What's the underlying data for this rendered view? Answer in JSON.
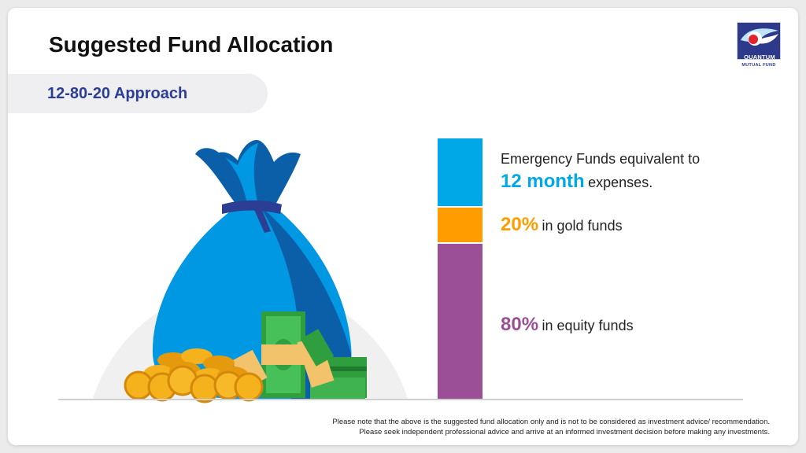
{
  "slide": {
    "title": "Suggested Fund Allocation",
    "subtitle": "12-80-20 Approach"
  },
  "logo": {
    "brand": "QUANTUM",
    "tagline": "MUTUAL FUND",
    "colors": {
      "navy": "#2d3a8c",
      "red": "#e3232c",
      "sky": "#bfe3f7"
    }
  },
  "allocation": [
    {
      "id": "emergency",
      "color": "#00a8e8",
      "prefix": "Emergency Funds equivalent to",
      "highlight": "12 month",
      "suffix": "expenses."
    },
    {
      "id": "gold",
      "color": "#ff9d00",
      "highlight": "20%",
      "suffix": "in gold funds"
    },
    {
      "id": "equity",
      "color": "#9b4f97",
      "highlight": "80%",
      "suffix": "in equity funds"
    }
  ],
  "illustration": {
    "icons": [
      "money-bag-icon",
      "gold-coins-icon",
      "banknote-stack-icon"
    ]
  },
  "disclaimer": {
    "line1": "Please note that the above is the suggested fund allocation only and is not to be considered as investment advice/ recommendation.",
    "line2": "Please seek independent professional advice and arrive at an informed investment decision before making any investments."
  }
}
